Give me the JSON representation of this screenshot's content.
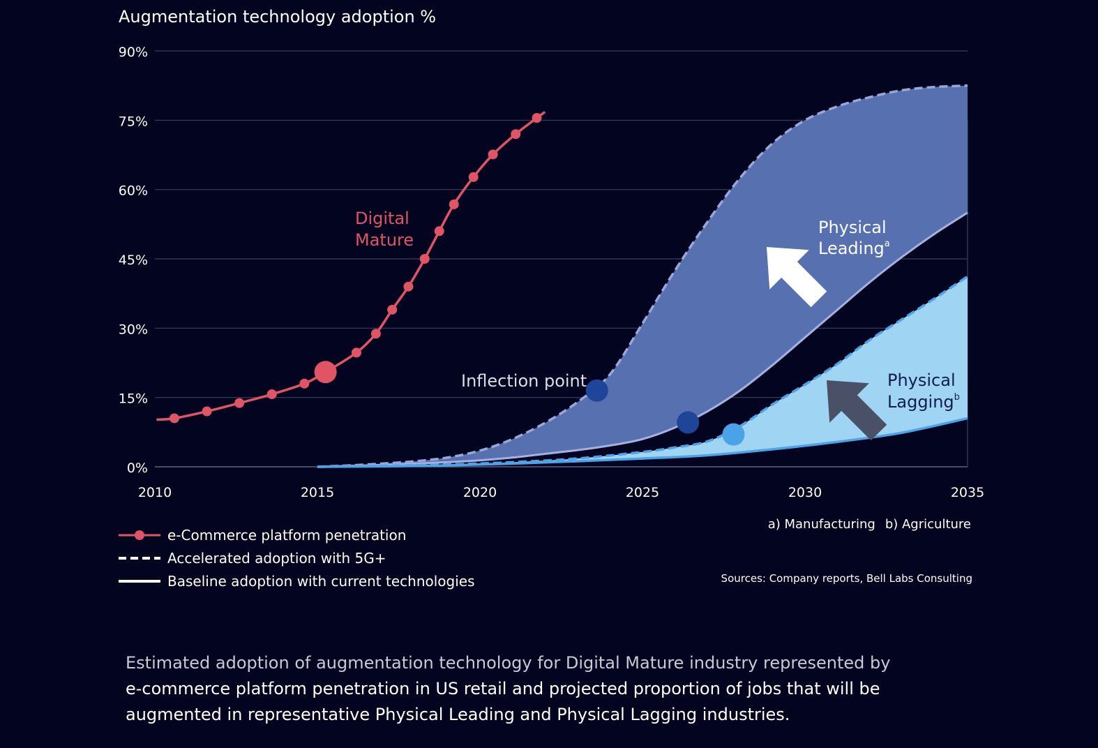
{
  "chart_data": {
    "type": "line",
    "title": "Augmentation technology adoption %",
    "xlim": [
      2010,
      2035
    ],
    "ylim": [
      0,
      90
    ],
    "x_ticks": [
      2010,
      2015,
      2020,
      2025,
      2030,
      2035
    ],
    "x_tick_labels": [
      "2010",
      "2015",
      "2020",
      "2025",
      "2030",
      "2035"
    ],
    "y_ticks": [
      0,
      15,
      30,
      45,
      60,
      75,
      90
    ],
    "y_tick_labels": [
      "0%",
      "15%",
      "30%",
      "45%",
      "60%",
      "75%",
      "90%"
    ],
    "grid": "horizontal",
    "series": [
      {
        "name": "e-Commerce platform penetration",
        "style": "solid-with-markers",
        "color": "#e05565",
        "x": [
          2010.6,
          2011.6,
          2012.6,
          2013.6,
          2014.6,
          2015.25,
          2016.2,
          2016.8,
          2017.3,
          2017.8,
          2018.3,
          2018.75,
          2019.2,
          2019.8,
          2020.4,
          2021.1,
          2021.75
        ],
        "y": [
          10.5,
          12,
          13.8,
          15.7,
          18,
          20.5,
          24.7,
          28.8,
          34,
          39,
          45,
          51,
          56.8,
          62.7,
          67.6,
          72,
          75.5
        ]
      },
      {
        "name": "Physical Leading — accelerated adoption with 5G+",
        "style": "dashed",
        "color": "#9aa6d8",
        "x": [
          2015,
          2016,
          2017,
          2018,
          2019,
          2020,
          2021,
          2022,
          2023,
          2024,
          2025,
          2026,
          2027,
          2028,
          2029,
          2030,
          2031,
          2032,
          2033,
          2034,
          2035
        ],
        "y": [
          0,
          0.3,
          0.7,
          1.2,
          2,
          3.5,
          6,
          9.5,
          14,
          20,
          31,
          42.5,
          53,
          62.5,
          70,
          75,
          78,
          80,
          81.5,
          82.2,
          82.5
        ]
      },
      {
        "name": "Physical Leading — baseline adoption with current technologies",
        "style": "solid",
        "color": "#a7b1e0",
        "x": [
          2015,
          2016,
          2017,
          2018,
          2019,
          2020,
          2021,
          2022,
          2023,
          2024,
          2025,
          2026,
          2027,
          2028,
          2029,
          2030,
          2031,
          2032,
          2033,
          2034,
          2035
        ],
        "y": [
          0,
          0.2,
          0.4,
          0.7,
          1,
          1.4,
          2,
          2.8,
          3.6,
          4.6,
          6,
          8.5,
          12,
          16.5,
          22,
          28,
          34,
          40,
          45.5,
          50.5,
          55
        ]
      },
      {
        "name": "Physical Lagging — accelerated adoption with 5G+",
        "style": "dashed",
        "color": "#4ea3e6",
        "x": [
          2015,
          2017,
          2019,
          2021,
          2023,
          2025,
          2026,
          2027,
          2028,
          2029,
          2030,
          2031,
          2032,
          2033,
          2034,
          2035
        ],
        "y": [
          0,
          0.2,
          0.5,
          1,
          1.8,
          3.2,
          4.2,
          5.5,
          8.8,
          13.5,
          17.8,
          22.3,
          27.5,
          32,
          36.5,
          41.2
        ]
      },
      {
        "name": "Physical Lagging — baseline adoption with current technologies",
        "style": "solid",
        "color": "#4ea3e6",
        "x": [
          2015,
          2017,
          2019,
          2021,
          2023,
          2025,
          2027,
          2029,
          2031,
          2033,
          2035
        ],
        "y": [
          0,
          0.1,
          0.3,
          0.7,
          1.2,
          1.8,
          2.5,
          3.8,
          5.4,
          7.4,
          10.5
        ]
      }
    ],
    "annotations": [
      {
        "text_lines": [
          "Digital",
          "Mature"
        ],
        "color": "#e05565"
      },
      {
        "text_lines": [
          "Physical",
          "Leading"
        ],
        "superscript": "a",
        "color": "#ffffff"
      },
      {
        "text_lines": [
          "Physical",
          "Lagging"
        ],
        "superscript": "b",
        "color": "#0e1d4e"
      },
      {
        "text": "Inflection point",
        "color": "#dcdde8"
      }
    ],
    "inflection_points": [
      {
        "x": 2023.6,
        "y": 16.5,
        "color": "#1f4599"
      },
      {
        "x": 2026.4,
        "y": 9.6,
        "color": "#1f4599"
      },
      {
        "x": 2027.8,
        "y": 7,
        "color": "#4aa3e8"
      }
    ],
    "highlight_point": {
      "x": 2015.25,
      "y": 20.5,
      "color": "#e05565"
    },
    "legend_placement": "bottom-left",
    "colors": {
      "background": "#030420",
      "ecommerce": "#e05565",
      "leading_fill": "#5670b0",
      "lagging_fill": "#9fd5f3",
      "arrow_white": "#ffffff",
      "arrow_dark": "#4a5166"
    }
  },
  "legend": {
    "items": [
      {
        "label": "e-Commerce platform penetration",
        "swatch": "solid-marker"
      },
      {
        "label": "Accelerated adoption with 5G+",
        "swatch": "dashed"
      },
      {
        "label": "Baseline adoption with current technologies",
        "swatch": "solid"
      }
    ]
  },
  "notes": {
    "a": "a)  Manufacturing",
    "b": "b) Agriculture"
  },
  "sources": "Sources: Company reports, Bell Labs Consulting",
  "caption": {
    "line1": "Estimated adoption of augmentation technology for Digital Mature industry represented by",
    "line2": "e-commerce platform penetration in US retail and projected proportion of jobs that will be",
    "line3": "augmented in representative Physical Leading and Physical Lagging industries."
  }
}
